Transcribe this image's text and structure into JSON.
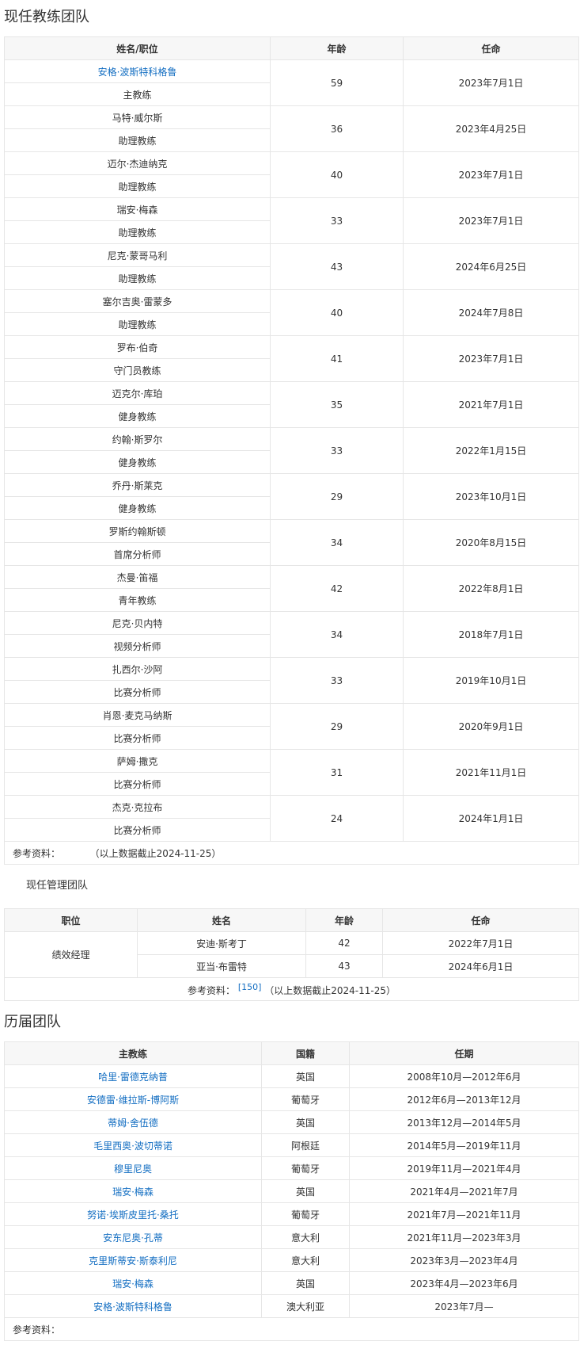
{
  "current_coaching": {
    "title": "现任教练团队",
    "headers": [
      "姓名/职位",
      "年龄",
      "任命"
    ],
    "rows": [
      {
        "name": "安格·波斯特科格鲁",
        "role": "主教练",
        "age": "59",
        "date": "2023年7月1日",
        "is_link": true
      },
      {
        "name": "马特·威尔斯",
        "role": "助理教练",
        "age": "36",
        "date": "2023年4月25日"
      },
      {
        "name": "迈尔·杰迪纳克",
        "role": "助理教练",
        "age": "40",
        "date": "2023年7月1日"
      },
      {
        "name": "瑞安·梅森",
        "role": "助理教练",
        "age": "33",
        "date": "2023年7月1日"
      },
      {
        "name": "尼克·蒙哥马利",
        "role": "助理教练",
        "age": "43",
        "date": "2024年6月25日"
      },
      {
        "name": "塞尔吉奥·雷蒙多",
        "role": "助理教练",
        "age": "40",
        "date": "2024年7月8日"
      },
      {
        "name": "罗布·伯奇",
        "role": "守门员教练",
        "age": "41",
        "date": "2023年7月1日"
      },
      {
        "name": "迈克尔·库珀",
        "role": "健身教练",
        "age": "35",
        "date": "2021年7月1日"
      },
      {
        "name": "约翰·斯罗尔",
        "role": "健身教练",
        "age": "33",
        "date": "2022年1月15日"
      },
      {
        "name": "乔丹·斯莱克",
        "role": "健身教练",
        "age": "29",
        "date": "2023年10月1日"
      },
      {
        "name": "罗斯约翰斯顿",
        "role": "首席分析师",
        "age": "34",
        "date": "2020年8月15日"
      },
      {
        "name": "杰曼·笛福",
        "role": "青年教练",
        "age": "42",
        "date": "2022年8月1日"
      },
      {
        "name": "尼克·贝内特",
        "role": "视频分析师",
        "age": "34",
        "date": "2018年7月1日"
      },
      {
        "name": "扎西尔·沙阿",
        "role": "比赛分析师",
        "age": "33",
        "date": "2019年10月1日"
      },
      {
        "name": "肖恩·麦克马纳斯",
        "role": "比赛分析师",
        "age": "29",
        "date": "2020年9月1日"
      },
      {
        "name": "萨姆·撒克",
        "role": "比赛分析师",
        "age": "31",
        "date": "2021年11月1日"
      },
      {
        "name": "杰克·克拉布",
        "role": "比赛分析师",
        "age": "24",
        "date": "2024年1月1日"
      }
    ],
    "footer_label": "参考资料：",
    "footer_note": "（以上数据截止2024-11-25）"
  },
  "current_management": {
    "title": "现任管理团队",
    "headers": [
      "职位",
      "姓名",
      "年龄",
      "任命"
    ],
    "position": "绩效经理",
    "rows": [
      {
        "name": "安迪·斯考丁",
        "age": "42",
        "date": "2022年7月1日"
      },
      {
        "name": "亚当·布雷特",
        "age": "43",
        "date": "2024年6月1日"
      }
    ],
    "footer_label": "参考资料：",
    "footer_ref": "[150]",
    "footer_note": "（以上数据截止2024-11-25）"
  },
  "history": {
    "title": "历届团队",
    "headers": [
      "主教练",
      "国籍",
      "任期"
    ],
    "rows": [
      {
        "name": "哈里·雷德克纳普",
        "nation": "英国",
        "term": "2008年10月—2012年6月"
      },
      {
        "name": "安德雷·维拉斯-博阿斯",
        "nation": "葡萄牙",
        "term": "2012年6月—2013年12月"
      },
      {
        "name": "蒂姆·舍伍德",
        "nation": "英国",
        "term": "2013年12月—2014年5月"
      },
      {
        "name": "毛里西奥·波切蒂诺",
        "nation": "阿根廷",
        "term": "2014年5月—2019年11月"
      },
      {
        "name": "穆里尼奥",
        "nation": "葡萄牙",
        "term": "2019年11月—2021年4月"
      },
      {
        "name": "瑞安·梅森",
        "nation": "英国",
        "term": "2021年4月—2021年7月"
      },
      {
        "name": "努诺·埃斯皮里托·桑托",
        "nation": "葡萄牙",
        "term": "2021年7月—2021年11月"
      },
      {
        "name": "安东尼奥·孔蒂",
        "nation": "意大利",
        "term": "2021年11月—2023年3月"
      },
      {
        "name": "克里斯蒂安·斯泰利尼",
        "nation": "意大利",
        "term": "2023年3月—2023年4月"
      },
      {
        "name": "瑞安·梅森",
        "nation": "英国",
        "term": "2023年4月—2023年6月"
      },
      {
        "name": "安格·波斯特科格鲁",
        "nation": "澳大利亚",
        "term": "2023年7月—"
      }
    ],
    "footer_label": "参考资料："
  },
  "colors": {
    "link": "#136ec2",
    "border": "#e6e6e6",
    "header_bg": "#f7f7f7",
    "text": "#333333"
  }
}
